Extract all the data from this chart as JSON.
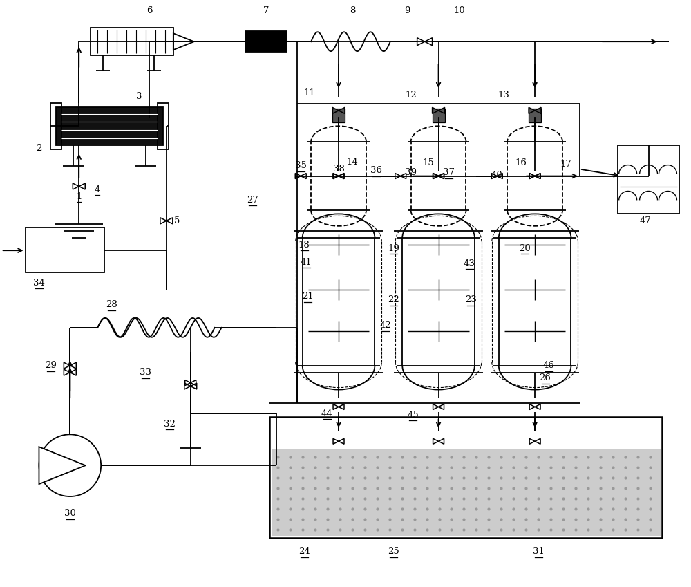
{
  "bg_color": "#ffffff",
  "line_color": "#000000",
  "figsize": [
    10.0,
    8.49
  ],
  "dpi": 100
}
